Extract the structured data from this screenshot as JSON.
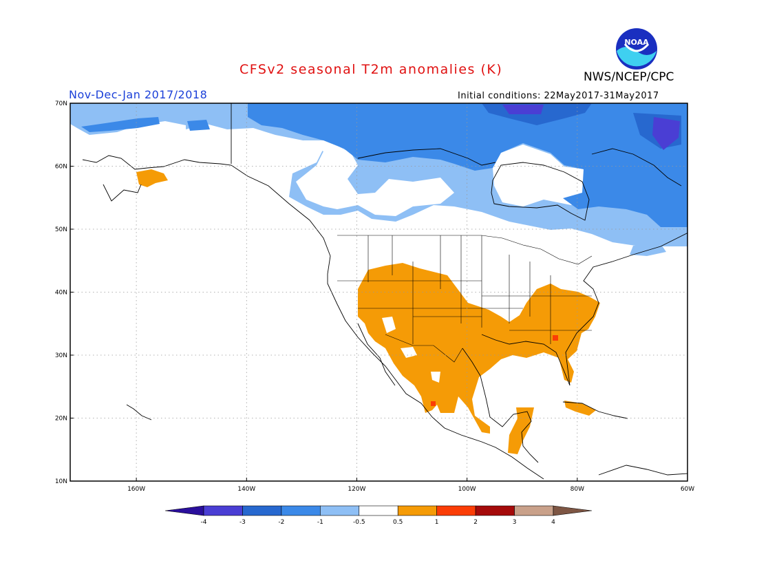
{
  "header": {
    "title": "CFSv2 seasonal T2m anomalies (K)",
    "agency": "NWS/NCEP/CPC",
    "logo_text": "NOAA",
    "period": "Nov-Dec-Jan 2017/2018",
    "initial_conditions": "Initial conditions: 22May2017-31May2017"
  },
  "map": {
    "lon_range": [
      -172,
      -60
    ],
    "lat_range": [
      10,
      70
    ],
    "lat_ticks": [
      {
        "value": 70,
        "label": "70N"
      },
      {
        "value": 60,
        "label": "60N"
      },
      {
        "value": 50,
        "label": "50N"
      },
      {
        "value": 40,
        "label": "40N"
      },
      {
        "value": 30,
        "label": "30N"
      },
      {
        "value": 20,
        "label": "20N"
      },
      {
        "value": 10,
        "label": "10N"
      }
    ],
    "lon_ticks": [
      {
        "value": -160,
        "label": "160W"
      },
      {
        "value": -140,
        "label": "140W"
      },
      {
        "value": -120,
        "label": "120W"
      },
      {
        "value": -100,
        "label": "100W"
      },
      {
        "value": -80,
        "label": "80W"
      },
      {
        "value": -60,
        "label": "60W"
      }
    ],
    "grid": true
  },
  "legend": {
    "colors": [
      "#2a0f9c",
      "#4a3ed4",
      "#2768cf",
      "#3b89e8",
      "#8ebff5",
      "#ffffff",
      "#f59b06",
      "#fb3d06",
      "#a50a0a",
      "#c9a18a",
      "#7e5644"
    ],
    "labels": [
      "-4",
      "-3",
      "-2",
      "-1",
      "-0.5",
      "0.5",
      "1",
      "2",
      "3",
      "4"
    ]
  }
}
